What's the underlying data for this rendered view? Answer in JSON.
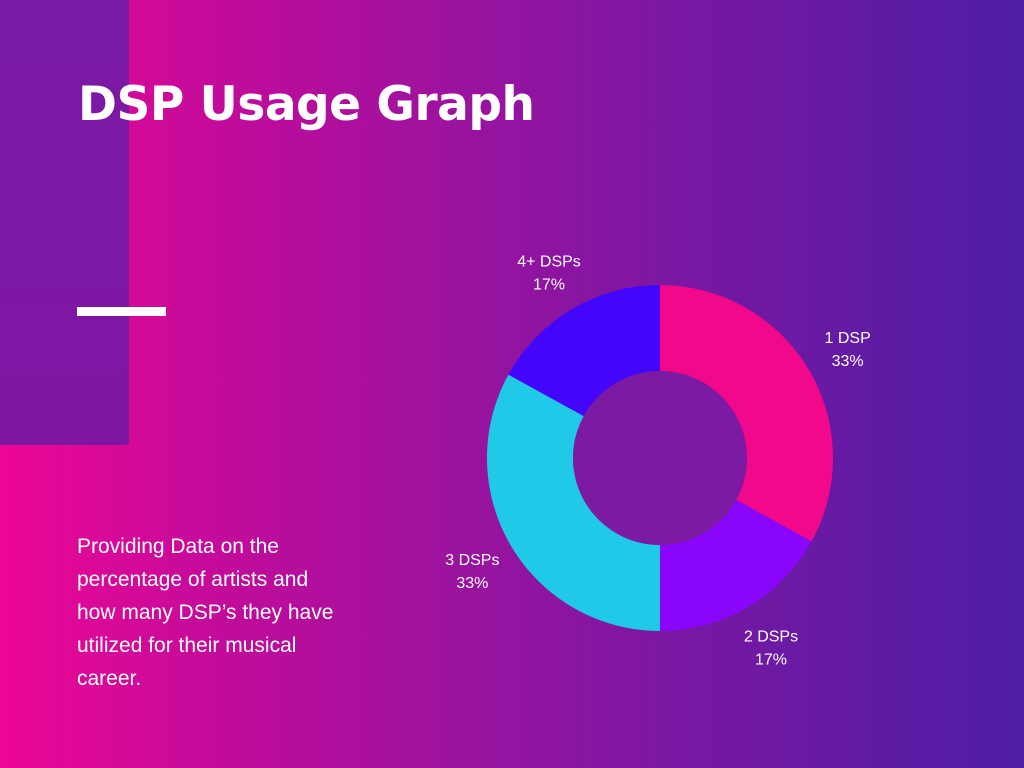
{
  "header": {
    "title": "DSP Usage Graph"
  },
  "body": {
    "description": "Providing Data on the percentage of artists and how many DSP’s they have utilized for their musical career."
  },
  "colors": {
    "background_left": "#ec0695",
    "background_right": "#4e1ea5",
    "side_panel": "#7a1aa6",
    "text": "#ffffff"
  },
  "chart_data": {
    "type": "pie",
    "donut": true,
    "title": "",
    "unit": "%",
    "categories": [
      "1 DSP",
      "2 DSPs",
      "3 DSPs",
      "4+ DSPs"
    ],
    "values": [
      33,
      17,
      33,
      17
    ],
    "percent_labels": [
      "33%",
      "17%",
      "33%",
      "17%"
    ],
    "colors": [
      "#f2088a",
      "#8a06fa",
      "#21c9e8",
      "#4406fb"
    ],
    "legend": "none (labels placed outside slices)"
  }
}
